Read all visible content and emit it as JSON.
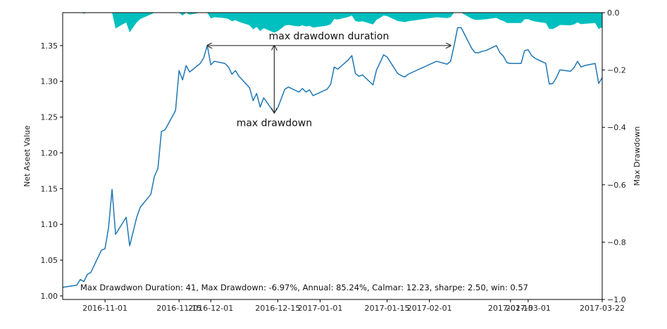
{
  "chart_data": {
    "type": "line",
    "ylabel": "Net Aseet Value",
    "y2label": "Max Drawdown",
    "xlim": [
      "2016-10-20",
      "2017-03-22"
    ],
    "ylim": [
      0.995,
      1.396
    ],
    "y2lim": [
      -1.0,
      0.0
    ],
    "x_tick_labels": [
      "2016-11-01",
      "2016-11-15",
      "2016-12-01",
      "2016-12-15",
      "2017-01-01",
      "2017-01-15",
      "2017-02-01",
      "2017-02-15",
      "2017-03-01",
      "2017-03-22"
    ],
    "y_ticks": [
      "1.00",
      "1.05",
      "1.10",
      "1.15",
      "1.20",
      "1.25",
      "1.30",
      "1.35"
    ],
    "y2_ticks": [
      "0.0",
      "−0.2",
      "−0.4",
      "−0.6",
      "−0.8",
      "−1.0"
    ],
    "series": [
      {
        "type": "line",
        "color": "#1f77b4",
        "x": [
          "2016-10-20",
          "2016-10-24",
          "2016-10-25",
          "2016-10-26",
          "2016-10-27",
          "2016-10-28",
          "2016-10-31",
          "2016-11-01",
          "2016-11-02",
          "2016-11-03",
          "2016-11-04",
          "2016-11-07",
          "2016-11-08",
          "2016-11-09",
          "2016-11-10",
          "2016-11-11",
          "2016-11-14",
          "2016-11-15",
          "2016-11-16",
          "2016-11-17",
          "2016-11-18",
          "2016-11-21",
          "2016-11-22",
          "2016-11-23",
          "2016-11-24",
          "2016-11-25",
          "2016-11-28",
          "2016-11-29",
          "2016-11-30",
          "2016-12-01",
          "2016-12-02",
          "2016-12-05",
          "2016-12-06",
          "2016-12-07",
          "2016-12-08",
          "2016-12-09",
          "2016-12-12",
          "2016-12-13",
          "2016-12-14",
          "2016-12-15",
          "2016-12-16",
          "2016-12-19",
          "2016-12-20",
          "2016-12-21",
          "2016-12-22",
          "2016-12-23",
          "2016-12-26",
          "2016-12-27",
          "2016-12-28",
          "2016-12-29",
          "2016-12-30",
          "2017-01-03",
          "2017-01-04",
          "2017-01-05",
          "2017-01-06",
          "2017-01-09",
          "2017-01-10",
          "2017-01-11",
          "2017-01-12",
          "2017-01-13",
          "2017-01-16",
          "2017-01-17",
          "2017-01-18",
          "2017-01-19",
          "2017-01-20",
          "2017-01-23",
          "2017-01-24",
          "2017-01-25",
          "2017-01-26",
          "2017-02-03",
          "2017-02-06",
          "2017-02-07",
          "2017-02-08",
          "2017-02-09",
          "2017-02-10",
          "2017-02-13",
          "2017-02-14",
          "2017-02-15",
          "2017-02-16",
          "2017-02-17",
          "2017-02-20",
          "2017-02-21",
          "2017-02-22",
          "2017-02-23",
          "2017-02-24",
          "2017-02-27",
          "2017-02-28",
          "2017-03-01",
          "2017-03-02",
          "2017-03-03",
          "2017-03-06",
          "2017-03-07",
          "2017-03-08",
          "2017-03-09",
          "2017-03-10",
          "2017-03-13",
          "2017-03-14",
          "2017-03-15",
          "2017-03-16",
          "2017-03-17",
          "2017-03-20",
          "2017-03-21",
          "2017-03-22"
        ],
        "y": [
          1.012,
          1.015,
          1.023,
          1.02,
          1.03,
          1.033,
          1.064,
          1.066,
          1.095,
          1.149,
          1.086,
          1.11,
          1.07,
          1.09,
          1.11,
          1.124,
          1.142,
          1.167,
          1.178,
          1.23,
          1.232,
          1.259,
          1.315,
          1.302,
          1.322,
          1.313,
          1.325,
          1.333,
          1.35,
          1.323,
          1.328,
          1.325,
          1.32,
          1.31,
          1.315,
          1.307,
          1.291,
          1.273,
          1.283,
          1.264,
          1.277,
          1.256,
          1.263,
          1.276,
          1.289,
          1.292,
          1.285,
          1.29,
          1.285,
          1.288,
          1.28,
          1.289,
          1.296,
          1.32,
          1.317,
          1.33,
          1.336,
          1.311,
          1.307,
          1.309,
          1.295,
          1.316,
          1.326,
          1.337,
          1.334,
          1.311,
          1.308,
          1.306,
          1.31,
          1.328,
          1.324,
          1.328,
          1.35,
          1.375,
          1.375,
          1.346,
          1.34,
          1.34,
          1.342,
          1.343,
          1.35,
          1.34,
          1.335,
          1.326,
          1.325,
          1.325,
          1.343,
          1.344,
          1.336,
          1.332,
          1.325,
          1.296,
          1.297,
          1.305,
          1.316,
          1.314,
          1.319,
          1.328,
          1.32,
          1.322,
          1.325,
          1.297,
          1.305
        ]
      },
      {
        "type": "area",
        "color": "#00bfbf",
        "axis": "y2",
        "x": [
          "2016-10-20",
          "2016-10-24",
          "2016-10-25",
          "2016-10-26",
          "2016-10-27",
          "2016-10-28",
          "2016-10-31",
          "2016-11-01",
          "2016-11-02",
          "2016-11-03",
          "2016-11-04",
          "2016-11-07",
          "2016-11-08",
          "2016-11-09",
          "2016-11-10",
          "2016-11-11",
          "2016-11-14",
          "2016-11-15",
          "2016-11-16",
          "2016-11-17",
          "2016-11-18",
          "2016-11-21",
          "2016-11-22",
          "2016-11-23",
          "2016-11-24",
          "2016-11-25",
          "2016-11-28",
          "2016-11-29",
          "2016-11-30",
          "2016-12-01",
          "2016-12-02",
          "2016-12-05",
          "2016-12-06",
          "2016-12-07",
          "2016-12-08",
          "2016-12-09",
          "2016-12-12",
          "2016-12-13",
          "2016-12-14",
          "2016-12-15",
          "2016-12-16",
          "2016-12-19",
          "2016-12-20",
          "2016-12-21",
          "2016-12-22",
          "2016-12-23",
          "2016-12-26",
          "2016-12-27",
          "2016-12-28",
          "2016-12-29",
          "2016-12-30",
          "2017-01-03",
          "2017-01-04",
          "2017-01-05",
          "2017-01-06",
          "2017-01-09",
          "2017-01-10",
          "2017-01-11",
          "2017-01-12",
          "2017-01-13",
          "2017-01-16",
          "2017-01-17",
          "2017-01-18",
          "2017-01-19",
          "2017-01-20",
          "2017-01-23",
          "2017-01-24",
          "2017-01-25",
          "2017-01-26",
          "2017-02-03",
          "2017-02-06",
          "2017-02-07",
          "2017-02-08",
          "2017-02-09",
          "2017-02-10",
          "2017-02-13",
          "2017-02-14",
          "2017-02-15",
          "2017-02-16",
          "2017-02-17",
          "2017-02-20",
          "2017-02-21",
          "2017-02-22",
          "2017-02-23",
          "2017-02-24",
          "2017-02-27",
          "2017-02-28",
          "2017-03-01",
          "2017-03-02",
          "2017-03-03",
          "2017-03-06",
          "2017-03-07",
          "2017-03-08",
          "2017-03-09",
          "2017-03-10",
          "2017-03-13",
          "2017-03-14",
          "2017-03-15",
          "2017-03-16",
          "2017-03-17",
          "2017-03-20",
          "2017-03-21",
          "2017-03-22"
        ],
        "y": [
          0.0,
          0.0,
          0.0,
          -0.003,
          0.0,
          0.0,
          0.0,
          0.0,
          0.0,
          0.0,
          -0.055,
          -0.034,
          -0.069,
          -0.051,
          -0.034,
          -0.022,
          -0.006,
          0.0,
          0.0,
          0.0,
          0.0,
          0.0,
          0.0,
          -0.01,
          0.0,
          -0.007,
          0.0,
          0.0,
          0.0,
          -0.02,
          -0.016,
          -0.019,
          -0.022,
          -0.03,
          -0.026,
          -0.032,
          -0.044,
          -0.058,
          -0.05,
          -0.064,
          -0.054,
          -0.07,
          -0.064,
          -0.055,
          -0.045,
          -0.043,
          -0.048,
          -0.044,
          -0.048,
          -0.046,
          -0.052,
          -0.045,
          -0.04,
          -0.022,
          -0.024,
          -0.015,
          -0.01,
          -0.029,
          -0.032,
          -0.03,
          -0.041,
          -0.025,
          -0.018,
          -0.01,
          -0.012,
          -0.029,
          -0.031,
          -0.033,
          -0.03,
          -0.016,
          -0.019,
          -0.016,
          0.0,
          0.0,
          0.0,
          -0.021,
          -0.025,
          -0.025,
          -0.024,
          -0.023,
          -0.018,
          -0.025,
          -0.029,
          -0.036,
          -0.036,
          -0.036,
          -0.023,
          -0.023,
          -0.028,
          -0.031,
          -0.036,
          -0.057,
          -0.057,
          -0.051,
          -0.043,
          -0.044,
          -0.041,
          -0.034,
          -0.04,
          -0.039,
          -0.036,
          -0.057,
          -0.051
        ]
      }
    ],
    "annotations": {
      "duration_label": "max drawdown duration",
      "drawdown_label": "max drawdown",
      "duration_from": "2016-11-30",
      "duration_to": "2017-02-07",
      "drawdown_x": "2016-12-19",
      "drawdown_peak": 1.35,
      "drawdown_trough": 1.256,
      "stats_text": "Max Drawdwon Duration: 41, Max Drawdown: -6.97%, Annual: 85.24%, Calmar: 12.23, sharpe: 2.50, win: 0.57"
    }
  }
}
